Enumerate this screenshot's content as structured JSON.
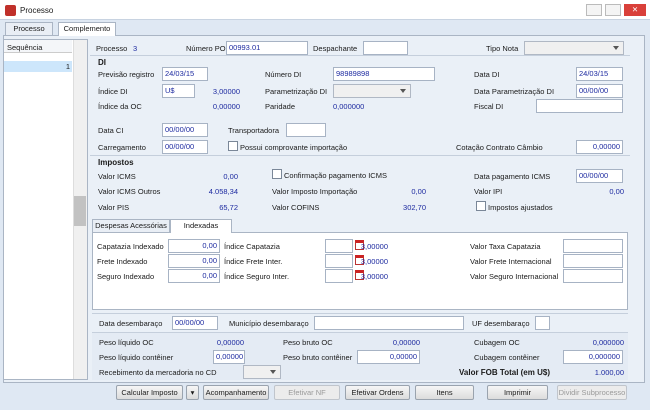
{
  "window": {
    "title": "Processo",
    "tabs": [
      "Processo",
      "Complemento"
    ]
  },
  "sequence_list": {
    "header": "Sequência",
    "rows": [
      "1"
    ]
  },
  "top": {
    "processo_label": "Processo",
    "processo": "3",
    "numero_po_label": "Número PO",
    "numero_po": "00993.01",
    "despachante_label": "Despachante",
    "tipo_nota_label": "Tipo Nota"
  },
  "di": {
    "title": "DI",
    "previsao_registro_label": "Previsão registro",
    "previsao_registro": "24/03/15",
    "numero_di_label": "Número DI",
    "numero_di": "98989898",
    "data_di_label": "Data DI",
    "data_di": "24/03/15",
    "indice_di_label": "Índice DI",
    "indice_di_moeda": "U$",
    "indice_di": "3,00000",
    "parametrizacao_di_label": "Parametrização DI",
    "data_parametrizacao_di_label": "Data Parametrização DI",
    "data_parametrizacao_di": "00/00/00",
    "indice_oc_label": "Índice da OC",
    "indice_oc": "0,00000",
    "paridade_label": "Paridade",
    "paridade": "0,000000",
    "fiscal_di_label": "Fiscal DI"
  },
  "transporte": {
    "data_ci_label": "Data CI",
    "data_ci": "00/00/00",
    "transportadora_label": "Transportadora",
    "carregamento_label": "Carregamento",
    "carregamento": "00/00/00",
    "possui_comprovante_label": "Possui comprovante importação",
    "cotacao_label": "Cotação Contrato Câmbio",
    "cotacao": "0,00000"
  },
  "impostos": {
    "title": "Impostos",
    "valor_icms_label": "Valor ICMS",
    "valor_icms": "0,00",
    "confirmacao_icms_label": "Confirmação pagamento ICMS",
    "data_pagamento_icms_label": "Data pagamento ICMS",
    "data_pagamento_icms": "00/00/00",
    "valor_icms_outros_label": "Valor ICMS Outros",
    "valor_icms_outros": "4.058,34",
    "valor_ii_label": "Valor Imposto Importação",
    "valor_ii": "0,00",
    "valor_ipi_label": "Valor IPI",
    "valor_ipi": "0,00",
    "valor_pis_label": "Valor PIS",
    "valor_pis": "65,72",
    "valor_cofins_label": "Valor COFINS",
    "valor_cofins": "302,70",
    "impostos_ajustados_label": "Impostos ajustados"
  },
  "indexadas": {
    "tabs": [
      "Despesas Acessórias",
      "Indexadas"
    ],
    "rows": [
      {
        "indexado_label": "Capatazia Indexado",
        "indexado": "0,00",
        "indice_label": "Índice Capatazia",
        "indice": "3,00000",
        "valor_label": "Valor Taxa Capatazia"
      },
      {
        "indexado_label": "Frete Indexado",
        "indexado": "0,00",
        "indice_label": "Índice Frete Inter.",
        "indice": "3,00000",
        "valor_label": "Valor Frete Internacional"
      },
      {
        "indexado_label": "Seguro Indexado",
        "indexado": "0,00",
        "indice_label": "Índice Seguro Inter.",
        "indice": "3,00000",
        "valor_label": "Valor Seguro Internacional"
      }
    ]
  },
  "desembaraco": {
    "data_label": "Data desembaraço",
    "data": "00/00/00",
    "municipio_label": "Município desembaraço",
    "uf_label": "UF desembaraço"
  },
  "pesos": {
    "peso_liquido_oc_label": "Peso líquido OC",
    "peso_liquido_oc": "0,00000",
    "peso_bruto_oc_label": "Peso bruto OC",
    "peso_bruto_oc": "0,00000",
    "cubagem_oc_label": "Cubagem OC",
    "cubagem_oc": "0,000000",
    "peso_liquido_cont_label": "Peso líquido contêiner",
    "peso_liquido_cont": "0,00000",
    "peso_bruto_cont_label": "Peso bruto contêiner",
    "peso_bruto_cont": "0,00000",
    "cubagem_cont_label": "Cubagem contêiner",
    "cubagem_cont": "0,000000",
    "recebimento_label": "Recebimento da mercadoria no CD",
    "valor_fob_label": "Valor FOB Total (em U$)",
    "valor_fob": "1.000,00"
  },
  "buttons": [
    "Calcular Imposto",
    "Acompanhamento",
    "Efetivar NF",
    "Efetivar Ordens",
    "Itens",
    "Imprimir",
    "Dividir Subprocesso"
  ]
}
